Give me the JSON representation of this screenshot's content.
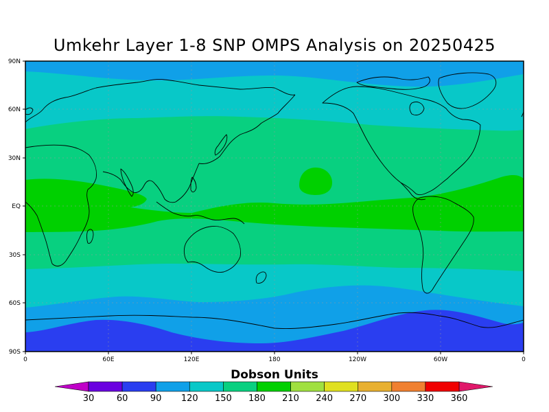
{
  "title": "Umkehr Layer 1-8 SNP OMPS Analysis on 20250425",
  "colorbar": {
    "title": "Dobson Units",
    "levels": [
      "30",
      "60",
      "90",
      "120",
      "150",
      "180",
      "210",
      "240",
      "270",
      "300",
      "330",
      "360"
    ],
    "colors": [
      "#b000d0",
      "#6a00e0",
      "#2a3ef0",
      "#10a0e8",
      "#08c8c8",
      "#08d080",
      "#00d000",
      "#a0e040",
      "#e0e020",
      "#e8b030",
      "#f08030",
      "#f00000"
    ],
    "end_low_color": "#c000c8",
    "end_high_color": "#e0186a"
  },
  "axes": {
    "x_ticks": [
      "0",
      "60E",
      "120E",
      "180",
      "120W",
      "60W",
      "0"
    ],
    "y_ticks": [
      "90N",
      "60N",
      "30N",
      "EQ",
      "30S",
      "60S",
      "90S"
    ]
  },
  "map": {
    "projection": "cylindrical equidistant",
    "bands": [
      {
        "level": "90-120",
        "color": "#10a0e8"
      },
      {
        "level": "120-150",
        "color": "#08c8c8"
      },
      {
        "level": "150-180",
        "color": "#08d080"
      },
      {
        "level": "180-210",
        "color": "#00d000"
      },
      {
        "level": "60-90",
        "color": "#2a3ef0"
      }
    ]
  }
}
